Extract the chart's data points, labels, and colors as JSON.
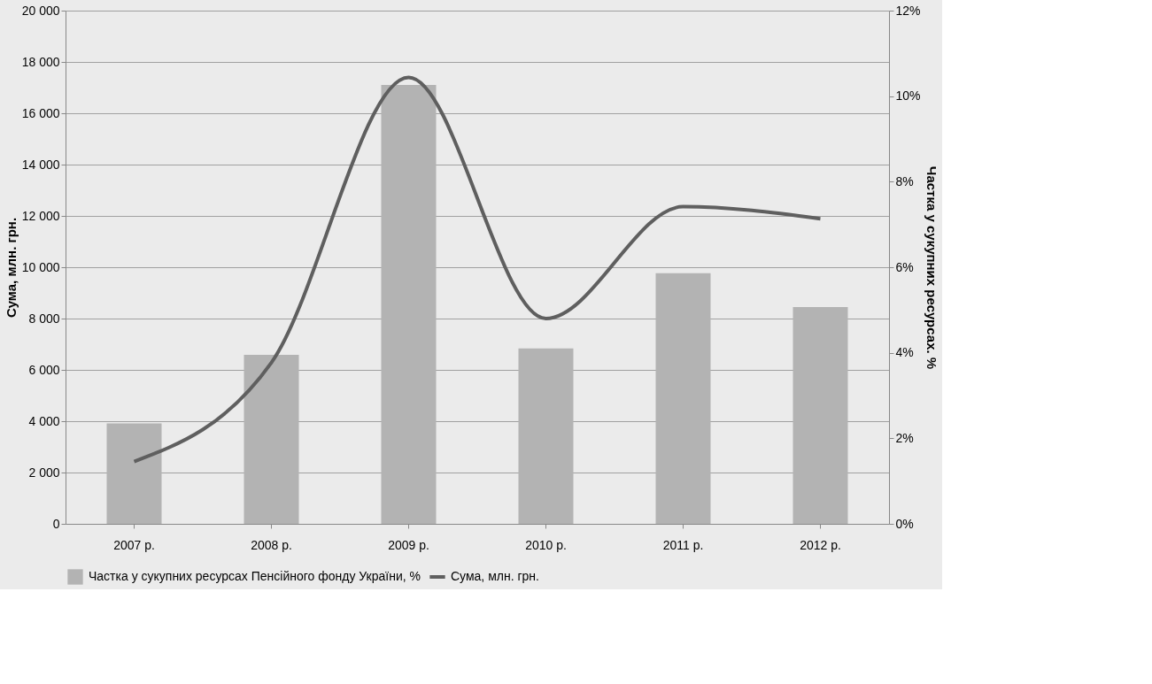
{
  "chart_data": {
    "type": "bar",
    "categories": [
      "2007 р.",
      "2008 р.",
      "2009 р.",
      "2010 р.",
      "2011 р.",
      "2012 р."
    ],
    "ylabel": "Сума, млн. грн.",
    "y2label": "Частка у сукупних ресурсах. %",
    "ylim": [
      0,
      20000
    ],
    "yticks": [
      {
        "value": 0,
        "label": "0"
      },
      {
        "value": 2000,
        "label": "2 000"
      },
      {
        "value": 4000,
        "label": "4 000"
      },
      {
        "value": 6000,
        "label": "6 000"
      },
      {
        "value": 8000,
        "label": "8 000"
      },
      {
        "value": 10000,
        "label": "10 000"
      },
      {
        "value": 12000,
        "label": "12 000"
      },
      {
        "value": 14000,
        "label": "14 000"
      },
      {
        "value": 16000,
        "label": "16 000"
      },
      {
        "value": 18000,
        "label": "18 000"
      },
      {
        "value": 20000,
        "label": "20 000"
      }
    ],
    "y2lim": [
      0,
      12
    ],
    "y2ticks": [
      {
        "value": 0,
        "label": "0%"
      },
      {
        "value": 2,
        "label": "2%"
      },
      {
        "value": 4,
        "label": "4%"
      },
      {
        "value": 6,
        "label": "6%"
      },
      {
        "value": 8,
        "label": "8%"
      },
      {
        "value": 10,
        "label": "10%"
      },
      {
        "value": 12,
        "label": "12%"
      }
    ],
    "series": [
      {
        "name": "Частка у сукупних ресурсах Пенсійного фонду України, %",
        "axis": "y2",
        "color": "#b3b3b3",
        "values": [
          2.35,
          3.95,
          10.26,
          4.1,
          5.86,
          5.07
        ]
      },
      {
        "name": "Сума, млн. грн.",
        "type": "line",
        "axis": "y",
        "color": "#5f5f5f",
        "values": [
          2430,
          6280,
          17400,
          8000,
          12360,
          11890
        ]
      }
    ],
    "grid": "y",
    "legend": "bottom",
    "marker": "none",
    "line_style": "solid"
  }
}
